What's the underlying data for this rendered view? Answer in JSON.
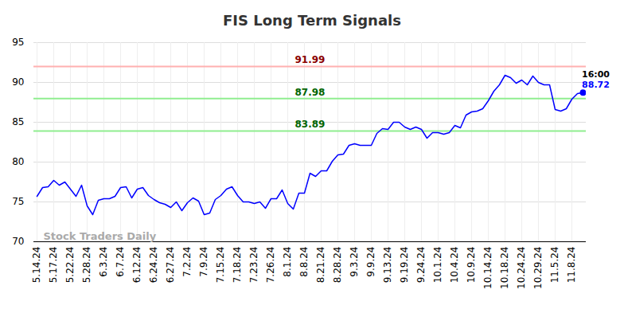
{
  "chart_data": {
    "type": "line",
    "title": "FIS Long Term Signals",
    "categories": [
      "5.14.24",
      null,
      null,
      "5.17.24",
      null,
      null,
      "5.22.24",
      null,
      null,
      "5.28.24",
      null,
      null,
      "6.3.24",
      null,
      null,
      "6.7.24",
      null,
      null,
      "6.12.24",
      null,
      null,
      "6.24.24",
      null,
      null,
      "6.27.24",
      null,
      null,
      "7.2.24",
      null,
      null,
      "7.9.24",
      null,
      null,
      "7.15.24",
      null,
      null,
      "7.18.24",
      null,
      null,
      "7.23.24",
      null,
      null,
      "7.26.24",
      null,
      null,
      "8.1.24",
      null,
      null,
      "8.8.24",
      null,
      null,
      "8.21.24",
      null,
      null,
      "8.28.24",
      null,
      null,
      "9.3.24",
      null,
      null,
      "9.9.24",
      null,
      null,
      "9.13.24",
      null,
      null,
      "9.19.24",
      null,
      null,
      "9.24.24",
      null,
      null,
      "10.1.24",
      null,
      null,
      "10.4.24",
      null,
      null,
      "10.9.24",
      null,
      null,
      "10.14.24",
      null,
      null,
      "10.18.24",
      null,
      null,
      "10.24.24",
      null,
      null,
      "10.29.24",
      null,
      null,
      "11.5.24",
      null,
      null,
      "11.8.24",
      null,
      null
    ],
    "values": [
      75.7,
      76.8,
      76.9,
      77.7,
      77.1,
      77.5,
      76.6,
      75.7,
      77.1,
      74.5,
      73.4,
      75.2,
      75.4,
      75.4,
      75.7,
      76.8,
      76.9,
      75.5,
      76.6,
      76.8,
      75.8,
      75.3,
      74.9,
      74.7,
      74.3,
      75.0,
      73.9,
      74.9,
      75.5,
      75.1,
      73.4,
      73.6,
      75.3,
      75.8,
      76.6,
      76.9,
      75.8,
      75.0,
      75.0,
      74.8,
      75.0,
      74.2,
      75.4,
      75.4,
      76.5,
      74.8,
      74.1,
      76.1,
      76.1,
      78.6,
      78.2,
      78.9,
      78.9,
      80.1,
      80.9,
      81.0,
      82.1,
      82.3,
      82.1,
      82.1,
      82.1,
      83.6,
      84.2,
      84.1,
      85.0,
      85.0,
      84.4,
      84.1,
      84.4,
      84.1,
      83.0,
      83.7,
      83.7,
      83.5,
      83.7,
      84.6,
      84.3,
      85.9,
      86.3,
      86.4,
      86.7,
      87.7,
      88.9,
      89.7,
      90.9,
      90.6,
      89.9,
      90.3,
      89.7,
      90.8,
      90.0,
      89.7,
      89.7,
      86.6,
      86.4,
      86.7,
      87.9,
      88.6,
      88.72
    ],
    "color": "#0000ff",
    "ylim": [
      70,
      95
    ],
    "yticks": [
      70,
      75,
      80,
      85,
      90,
      95
    ],
    "grid": true,
    "reference_lines": [
      {
        "value": 91.99,
        "color": "#ffb0b0",
        "text_color": "#8b0000"
      },
      {
        "value": 87.98,
        "color": "#90ee90",
        "text_color": "#006400"
      },
      {
        "value": 83.89,
        "color": "#90ee90",
        "text_color": "#006400"
      }
    ],
    "last_point_label": "16:00",
    "watermark": "Stock Traders Daily"
  }
}
